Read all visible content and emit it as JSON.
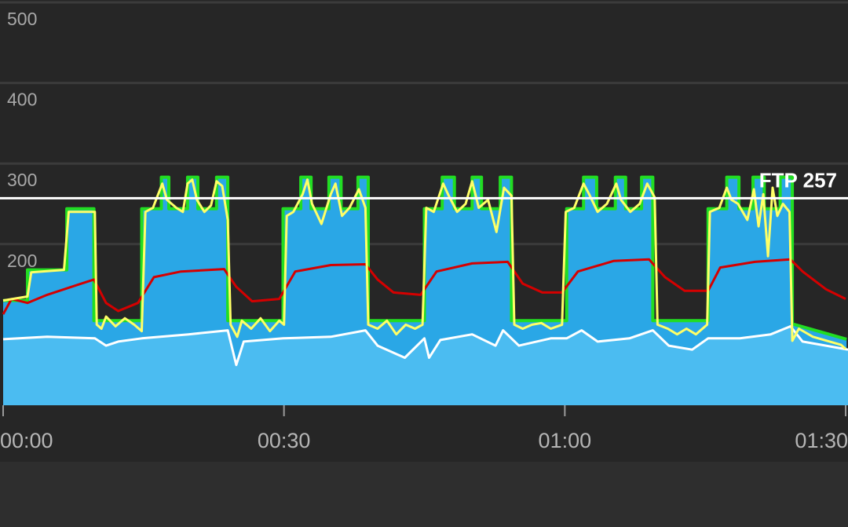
{
  "chart_data": {
    "type": "line",
    "xlim": [
      0,
      90.25
    ],
    "ylim": [
      0,
      500
    ],
    "yticks": [
      200,
      300,
      400,
      500
    ],
    "xticks": [
      {
        "value": 0,
        "label": "00:00"
      },
      {
        "value": 30,
        "label": "00:30"
      },
      {
        "value": 60,
        "label": "01:00"
      },
      {
        "value": 90,
        "label": "01:30"
      }
    ],
    "grid": true,
    "annotation": {
      "label": "FTP 257",
      "value": 257,
      "color": "#ffffff"
    },
    "series": [
      {
        "color": "#22dd22",
        "fill": "#2aa7e6",
        "x": [
          0,
          2.6,
          2.6,
          6.8,
          6.8,
          9.7,
          9.7,
          14.8,
          14.8,
          16.9,
          16.9,
          17.7,
          17.7,
          19.7,
          19.7,
          20.8,
          20.8,
          22.8,
          22.8,
          24.0,
          24.0,
          29.9,
          29.9,
          31.8,
          31.8,
          32.9,
          32.9,
          34.8,
          34.8,
          36.1,
          36.1,
          37.9,
          37.9,
          39.0,
          39.0,
          45.0,
          45.0,
          46.9,
          46.9,
          48.2,
          48.2,
          50.1,
          50.1,
          51.1,
          51.1,
          53.1,
          53.1,
          54.3,
          54.3,
          60.2,
          60.2,
          62.0,
          62.0,
          63.4,
          63.4,
          65.4,
          65.4,
          66.5,
          66.5,
          68.2,
          68.2,
          69.4,
          69.4,
          75.3,
          75.3,
          77.3,
          77.3,
          78.6,
          78.6,
          80.1,
          80.1,
          81.3,
          81.3,
          83.0,
          83.0,
          84.3,
          84.3,
          90.1
        ],
        "values": [
          130,
          130,
          168,
          168,
          244,
          244,
          105,
          105,
          244,
          244,
          283,
          283,
          244,
          244,
          283,
          283,
          244,
          244,
          283,
          283,
          105,
          105,
          244,
          244,
          283,
          283,
          244,
          244,
          283,
          283,
          244,
          244,
          283,
          283,
          105,
          105,
          244,
          244,
          283,
          283,
          244,
          244,
          283,
          283,
          244,
          244,
          283,
          283,
          105,
          105,
          244,
          244,
          283,
          283,
          244,
          244,
          283,
          283,
          244,
          244,
          283,
          283,
          105,
          105,
          244,
          244,
          283,
          283,
          244,
          244,
          283,
          283,
          244,
          244,
          283,
          283,
          101,
          82
        ]
      },
      {
        "color": "#ffffff",
        "fill": "#4bbcf1",
        "x": [
          0,
          4.7,
          9.8,
          11.0,
          12.3,
          14.8,
          19.8,
          24.0,
          24.9,
          25.7,
          29.9,
          35.0,
          38.7,
          40.0,
          42.9,
          45.0,
          45.5,
          46.7,
          50.1,
          52.6,
          53.4,
          55.1,
          58.5,
          60.2,
          61.8,
          63.5,
          66.9,
          69.4,
          71.1,
          73.6,
          75.3,
          78.7,
          82.0,
          84.1,
          85.4,
          87.9,
          90.25
        ],
        "values": [
          82,
          85,
          83,
          74,
          79,
          83,
          88,
          93,
          50,
          79,
          83,
          85,
          93,
          74,
          59,
          83,
          59,
          81,
          88,
          74,
          93,
          74,
          83,
          83,
          93,
          79,
          83,
          93,
          74,
          69,
          83,
          83,
          88,
          98,
          79,
          74,
          69
        ]
      },
      {
        "color": "#d50000",
        "x": [
          0,
          0.9,
          2.6,
          4.7,
          8.1,
          9.7,
          11.0,
          12.3,
          14.4,
          16.1,
          19.0,
          23.6,
          24.9,
          26.6,
          29.5,
          31.2,
          35.0,
          38.7,
          40.0,
          41.7,
          44.6,
          46.3,
          50.1,
          53.9,
          55.5,
          57.6,
          59.7,
          61.4,
          65.2,
          69.0,
          70.7,
          72.8,
          75.3,
          76.6,
          80.3,
          84.1,
          85.4,
          87.9,
          90.0
        ],
        "values": [
          113,
          132,
          127,
          137,
          150,
          156,
          127,
          117,
          127,
          159,
          166,
          169,
          147,
          129,
          132,
          166,
          174,
          175,
          156,
          140,
          137,
          166,
          176,
          178,
          151,
          140,
          140,
          166,
          179,
          181,
          159,
          142,
          142,
          171,
          178,
          181,
          166,
          144,
          132
        ]
      },
      {
        "color": "#ffff66",
        "x": [
          0,
          2.6,
          3,
          6.5,
          7,
          9.8,
          10,
          10.5,
          11,
          12,
          13,
          14,
          14.8,
          15.2,
          16,
          17,
          17.5,
          18,
          18.5,
          19.2,
          19.7,
          20.2,
          20.7,
          21.5,
          22.2,
          22.8,
          23.4,
          24,
          24.3,
          25,
          25.5,
          26.5,
          27.5,
          28.5,
          29.5,
          30,
          30.3,
          31,
          32,
          32.5,
          33,
          34,
          35,
          35.5,
          36.2,
          37,
          38,
          38.7,
          39,
          40,
          41,
          42,
          43,
          44,
          44.8,
          45.2,
          46,
          47,
          47.6,
          48.5,
          49.4,
          50.1,
          50.8,
          51.8,
          52.7,
          53.5,
          54.3,
          54.6,
          55.5,
          56.5,
          57.5,
          58.5,
          59.7,
          60.1,
          61,
          62,
          62.6,
          63.5,
          64.5,
          65.5,
          66,
          67,
          68,
          68.8,
          69.6,
          69.9,
          71,
          72,
          73,
          74,
          75.2,
          75.5,
          76.5,
          77.3,
          77.8,
          78.5,
          79.5,
          80.2,
          80.7,
          81.2,
          81.7,
          82.2,
          82.7,
          83.3,
          84,
          84.3,
          85,
          86.5,
          88,
          89.5,
          90
        ],
        "values": [
          130,
          135,
          165,
          168,
          240,
          240,
          100,
          95,
          110,
          98,
          108,
          100,
          92,
          240,
          245,
          275,
          255,
          250,
          245,
          240,
          275,
          280,
          255,
          240,
          248,
          278,
          272,
          230,
          100,
          85,
          105,
          95,
          108,
          92,
          105,
          100,
          235,
          240,
          262,
          280,
          250,
          225,
          262,
          275,
          235,
          245,
          268,
          245,
          100,
          95,
          105,
          88,
          100,
          95,
          100,
          245,
          240,
          275,
          260,
          240,
          250,
          278,
          245,
          255,
          215,
          270,
          260,
          100,
          95,
          100,
          102,
          95,
          100,
          240,
          245,
          275,
          262,
          240,
          250,
          275,
          255,
          240,
          250,
          275,
          258,
          100,
          95,
          88,
          95,
          88,
          100,
          240,
          245,
          270,
          255,
          250,
          230,
          268,
          222,
          262,
          185,
          270,
          235,
          250,
          240,
          80,
          95,
          85,
          80,
          75,
          70
        ]
      }
    ]
  }
}
